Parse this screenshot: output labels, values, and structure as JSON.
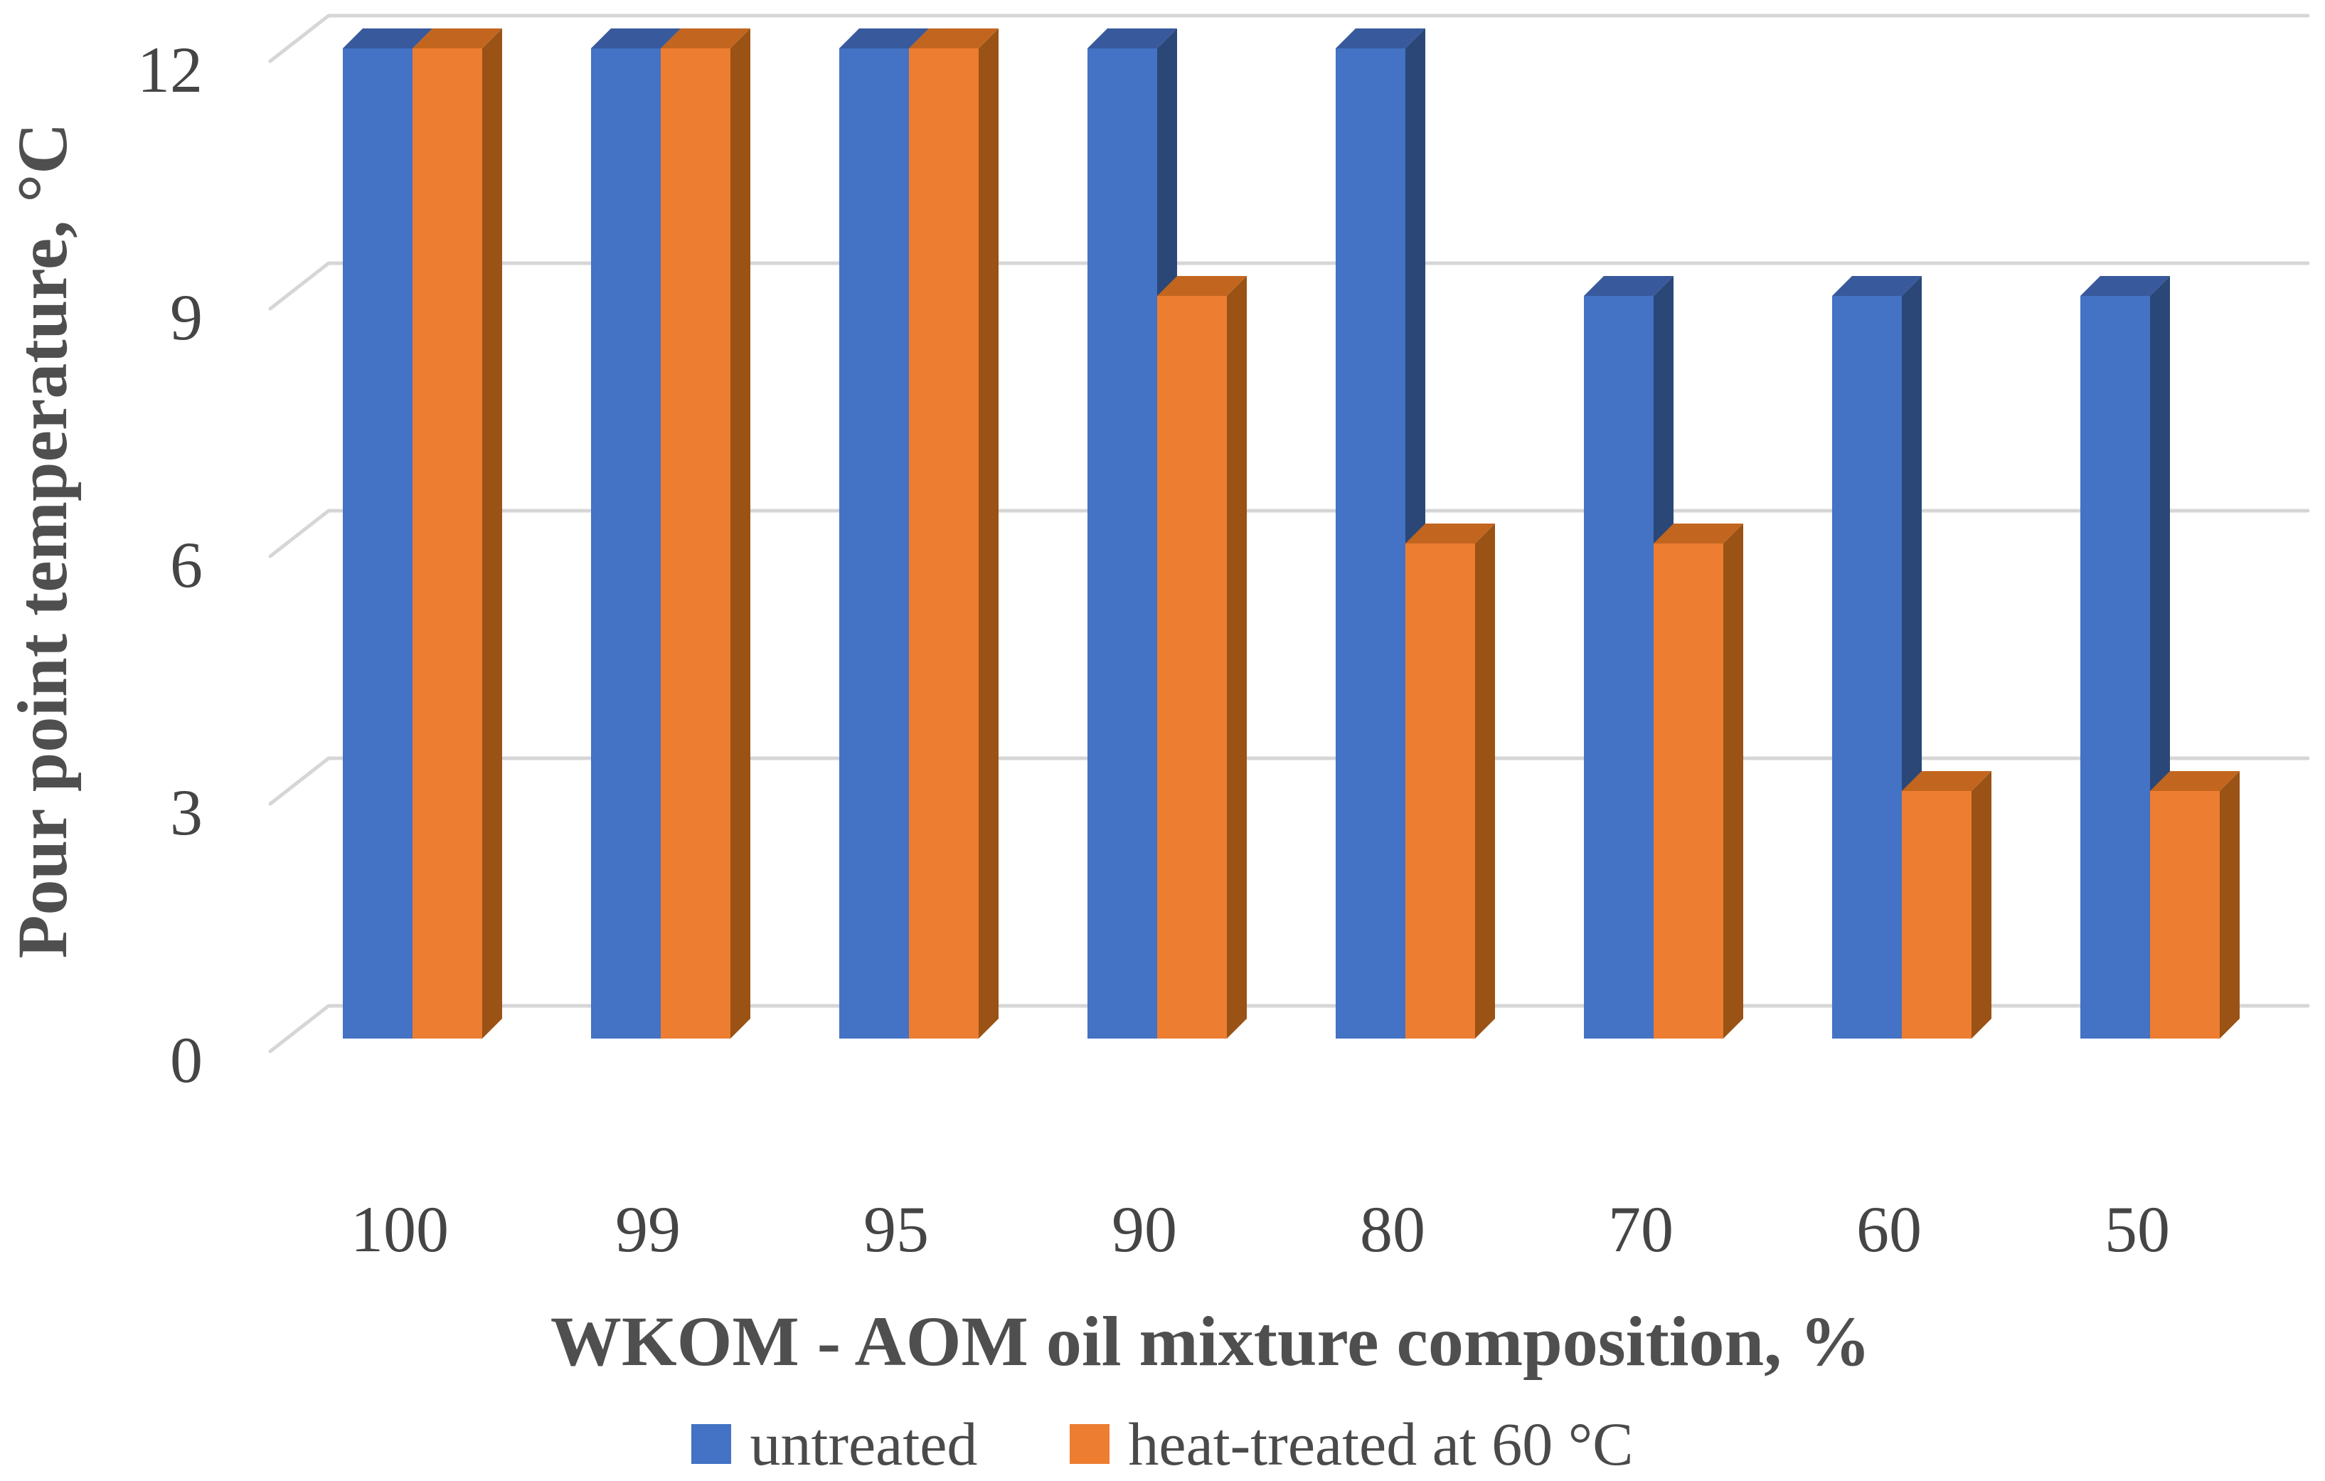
{
  "chart_data": {
    "type": "bar",
    "variant": "3d-clustered-column",
    "title": "",
    "xlabel": "WKOM - AOM oil mixture composition, %",
    "ylabel": "Pour point temperature, °C",
    "categories": [
      "100",
      "99",
      "95",
      "90",
      "80",
      "70",
      "60",
      "50"
    ],
    "series": [
      {
        "name": "untreated",
        "values": [
          12,
          12,
          12,
          12,
          12,
          9,
          9,
          9
        ],
        "color": "#4472C4",
        "top_color": "#38599C",
        "side_color": "#2A4778"
      },
      {
        "name": "heat-treated at 60 °C",
        "values": [
          12,
          12,
          12,
          9,
          6,
          6,
          3,
          3
        ],
        "color": "#ED7D31",
        "top_color": "#C2661F",
        "side_color": "#9A5215"
      }
    ],
    "y_ticks": [
      0,
      3,
      6,
      9,
      12
    ],
    "ylim": [
      0,
      12
    ],
    "grid": true,
    "gridline_color": "#D6D6D6",
    "tick_text_color": "#454545",
    "title_text_color": "#4f4f4f",
    "background": "#ffffff",
    "legend_position": "bottom"
  }
}
